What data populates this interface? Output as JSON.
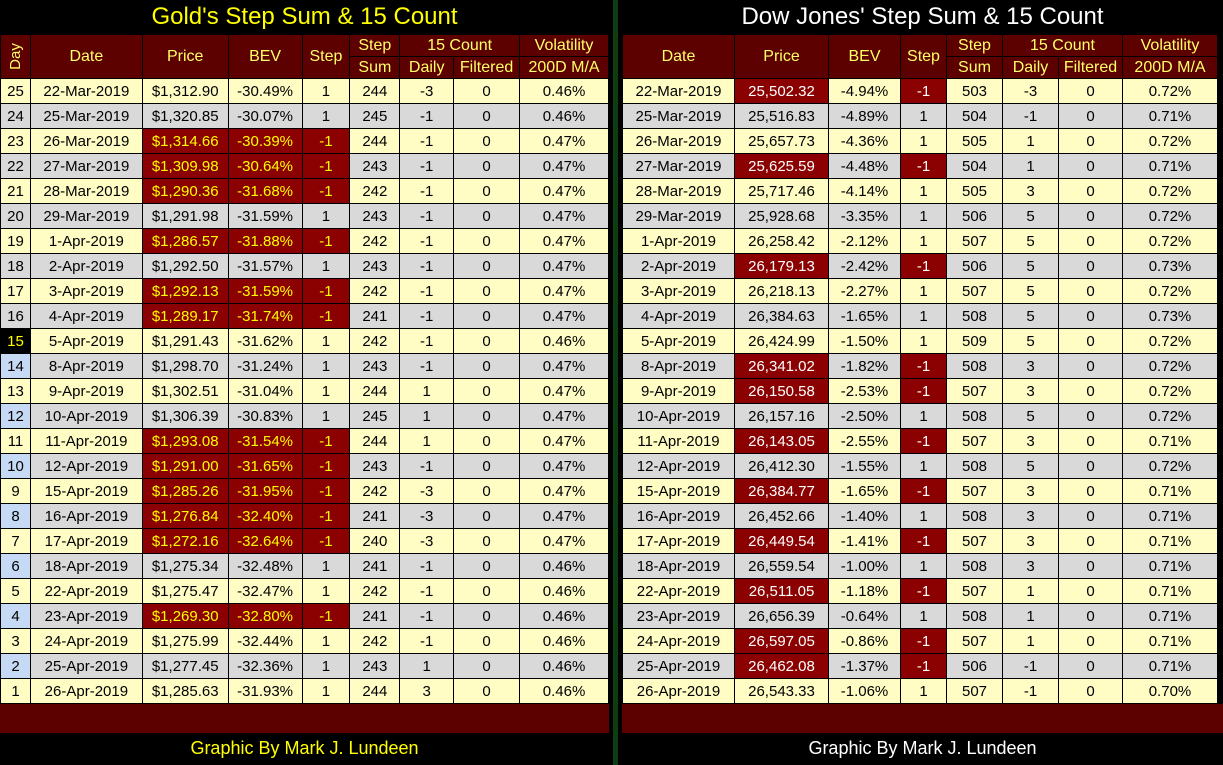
{
  "gold": {
    "title": "Gold's Step Sum & 15 Count",
    "credit": "Graphic By Mark J. Lundeen",
    "headers": {
      "day": "Day",
      "date": "Date",
      "price": "Price",
      "bev": "BEV",
      "step": "Step",
      "step_sum_1": "Step",
      "step_sum_2": "Sum",
      "count15": "15 Count",
      "daily": "Daily",
      "filtered": "Filtered",
      "vol_1": "Volatility",
      "vol_2": "200D M/A"
    },
    "rows": [
      {
        "day": "25",
        "date": "22-Mar-2019",
        "price": "$1,312.90",
        "bev": "-30.49%",
        "step": "1",
        "sum": "244",
        "daily": "-3",
        "filtered": "0",
        "vol": "0.46%",
        "neg": false
      },
      {
        "day": "24",
        "date": "25-Mar-2019",
        "price": "$1,320.85",
        "bev": "-30.07%",
        "step": "1",
        "sum": "245",
        "daily": "-1",
        "filtered": "0",
        "vol": "0.46%",
        "neg": false
      },
      {
        "day": "23",
        "date": "26-Mar-2019",
        "price": "$1,314.66",
        "bev": "-30.39%",
        "step": "-1",
        "sum": "244",
        "daily": "-1",
        "filtered": "0",
        "vol": "0.47%",
        "neg": true
      },
      {
        "day": "22",
        "date": "27-Mar-2019",
        "price": "$1,309.98",
        "bev": "-30.64%",
        "step": "-1",
        "sum": "243",
        "daily": "-1",
        "filtered": "0",
        "vol": "0.47%",
        "neg": true
      },
      {
        "day": "21",
        "date": "28-Mar-2019",
        "price": "$1,290.36",
        "bev": "-31.68%",
        "step": "-1",
        "sum": "242",
        "daily": "-1",
        "filtered": "0",
        "vol": "0.47%",
        "neg": true
      },
      {
        "day": "20",
        "date": "29-Mar-2019",
        "price": "$1,291.98",
        "bev": "-31.59%",
        "step": "1",
        "sum": "243",
        "daily": "-1",
        "filtered": "0",
        "vol": "0.47%",
        "neg": false
      },
      {
        "day": "19",
        "date": "1-Apr-2019",
        "price": "$1,286.57",
        "bev": "-31.88%",
        "step": "-1",
        "sum": "242",
        "daily": "-1",
        "filtered": "0",
        "vol": "0.47%",
        "neg": true
      },
      {
        "day": "18",
        "date": "2-Apr-2019",
        "price": "$1,292.50",
        "bev": "-31.57%",
        "step": "1",
        "sum": "243",
        "daily": "-1",
        "filtered": "0",
        "vol": "0.47%",
        "neg": false
      },
      {
        "day": "17",
        "date": "3-Apr-2019",
        "price": "$1,292.13",
        "bev": "-31.59%",
        "step": "-1",
        "sum": "242",
        "daily": "-1",
        "filtered": "0",
        "vol": "0.47%",
        "neg": true
      },
      {
        "day": "16",
        "date": "4-Apr-2019",
        "price": "$1,289.17",
        "bev": "-31.74%",
        "step": "-1",
        "sum": "241",
        "daily": "-1",
        "filtered": "0",
        "vol": "0.47%",
        "neg": true
      },
      {
        "day": "15",
        "date": "5-Apr-2019",
        "price": "$1,291.43",
        "bev": "-31.62%",
        "step": "1",
        "sum": "242",
        "daily": "-1",
        "filtered": "0",
        "vol": "0.46%",
        "neg": false
      },
      {
        "day": "14",
        "date": "8-Apr-2019",
        "price": "$1,298.70",
        "bev": "-31.24%",
        "step": "1",
        "sum": "243",
        "daily": "-1",
        "filtered": "0",
        "vol": "0.47%",
        "neg": false
      },
      {
        "day": "13",
        "date": "9-Apr-2019",
        "price": "$1,302.51",
        "bev": "-31.04%",
        "step": "1",
        "sum": "244",
        "daily": "1",
        "filtered": "0",
        "vol": "0.47%",
        "neg": false
      },
      {
        "day": "12",
        "date": "10-Apr-2019",
        "price": "$1,306.39",
        "bev": "-30.83%",
        "step": "1",
        "sum": "245",
        "daily": "1",
        "filtered": "0",
        "vol": "0.47%",
        "neg": false
      },
      {
        "day": "11",
        "date": "11-Apr-2019",
        "price": "$1,293.08",
        "bev": "-31.54%",
        "step": "-1",
        "sum": "244",
        "daily": "1",
        "filtered": "0",
        "vol": "0.47%",
        "neg": true
      },
      {
        "day": "10",
        "date": "12-Apr-2019",
        "price": "$1,291.00",
        "bev": "-31.65%",
        "step": "-1",
        "sum": "243",
        "daily": "-1",
        "filtered": "0",
        "vol": "0.47%",
        "neg": true
      },
      {
        "day": "9",
        "date": "15-Apr-2019",
        "price": "$1,285.26",
        "bev": "-31.95%",
        "step": "-1",
        "sum": "242",
        "daily": "-3",
        "filtered": "0",
        "vol": "0.47%",
        "neg": true
      },
      {
        "day": "8",
        "date": "16-Apr-2019",
        "price": "$1,276.84",
        "bev": "-32.40%",
        "step": "-1",
        "sum": "241",
        "daily": "-3",
        "filtered": "0",
        "vol": "0.47%",
        "neg": true
      },
      {
        "day": "7",
        "date": "17-Apr-2019",
        "price": "$1,272.16",
        "bev": "-32.64%",
        "step": "-1",
        "sum": "240",
        "daily": "-3",
        "filtered": "0",
        "vol": "0.47%",
        "neg": true
      },
      {
        "day": "6",
        "date": "18-Apr-2019",
        "price": "$1,275.34",
        "bev": "-32.48%",
        "step": "1",
        "sum": "241",
        "daily": "-1",
        "filtered": "0",
        "vol": "0.46%",
        "neg": false
      },
      {
        "day": "5",
        "date": "22-Apr-2019",
        "price": "$1,275.47",
        "bev": "-32.47%",
        "step": "1",
        "sum": "242",
        "daily": "-1",
        "filtered": "0",
        "vol": "0.46%",
        "neg": false
      },
      {
        "day": "4",
        "date": "23-Apr-2019",
        "price": "$1,269.30",
        "bev": "-32.80%",
        "step": "-1",
        "sum": "241",
        "daily": "-1",
        "filtered": "0",
        "vol": "0.46%",
        "neg": true
      },
      {
        "day": "3",
        "date": "24-Apr-2019",
        "price": "$1,275.99",
        "bev": "-32.44%",
        "step": "1",
        "sum": "242",
        "daily": "-1",
        "filtered": "0",
        "vol": "0.46%",
        "neg": false
      },
      {
        "day": "2",
        "date": "25-Apr-2019",
        "price": "$1,277.45",
        "bev": "-32.36%",
        "step": "1",
        "sum": "243",
        "daily": "1",
        "filtered": "0",
        "vol": "0.46%",
        "neg": false
      },
      {
        "day": "1",
        "date": "26-Apr-2019",
        "price": "$1,285.63",
        "bev": "-31.93%",
        "step": "1",
        "sum": "244",
        "daily": "3",
        "filtered": "0",
        "vol": "0.46%",
        "neg": false
      }
    ]
  },
  "dow": {
    "title": "Dow Jones' Step Sum & 15 Count",
    "credit": "Graphic By Mark J. Lundeen",
    "headers": {
      "date": "Date",
      "price": "Price",
      "bev": "BEV",
      "step": "Step",
      "step_sum_1": "Step",
      "step_sum_2": "Sum",
      "count15": "15 Count",
      "daily": "Daily",
      "filtered": "Filtered",
      "vol_1": "Volatility",
      "vol_2": "200D M/A"
    },
    "rows": [
      {
        "date": "22-Mar-2019",
        "price": "25,502.32",
        "bev": "-4.94%",
        "step": "-1",
        "sum": "503",
        "daily": "-3",
        "filtered": "0",
        "vol": "0.72%",
        "neg": true
      },
      {
        "date": "25-Mar-2019",
        "price": "25,516.83",
        "bev": "-4.89%",
        "step": "1",
        "sum": "504",
        "daily": "-1",
        "filtered": "0",
        "vol": "0.71%",
        "neg": false
      },
      {
        "date": "26-Mar-2019",
        "price": "25,657.73",
        "bev": "-4.36%",
        "step": "1",
        "sum": "505",
        "daily": "1",
        "filtered": "0",
        "vol": "0.72%",
        "neg": false
      },
      {
        "date": "27-Mar-2019",
        "price": "25,625.59",
        "bev": "-4.48%",
        "step": "-1",
        "sum": "504",
        "daily": "1",
        "filtered": "0",
        "vol": "0.71%",
        "neg": true
      },
      {
        "date": "28-Mar-2019",
        "price": "25,717.46",
        "bev": "-4.14%",
        "step": "1",
        "sum": "505",
        "daily": "3",
        "filtered": "0",
        "vol": "0.72%",
        "neg": false
      },
      {
        "date": "29-Mar-2019",
        "price": "25,928.68",
        "bev": "-3.35%",
        "step": "1",
        "sum": "506",
        "daily": "5",
        "filtered": "0",
        "vol": "0.72%",
        "neg": false
      },
      {
        "date": "1-Apr-2019",
        "price": "26,258.42",
        "bev": "-2.12%",
        "step": "1",
        "sum": "507",
        "daily": "5",
        "filtered": "0",
        "vol": "0.72%",
        "neg": false
      },
      {
        "date": "2-Apr-2019",
        "price": "26,179.13",
        "bev": "-2.42%",
        "step": "-1",
        "sum": "506",
        "daily": "5",
        "filtered": "0",
        "vol": "0.73%",
        "neg": true
      },
      {
        "date": "3-Apr-2019",
        "price": "26,218.13",
        "bev": "-2.27%",
        "step": "1",
        "sum": "507",
        "daily": "5",
        "filtered": "0",
        "vol": "0.72%",
        "neg": false
      },
      {
        "date": "4-Apr-2019",
        "price": "26,384.63",
        "bev": "-1.65%",
        "step": "1",
        "sum": "508",
        "daily": "5",
        "filtered": "0",
        "vol": "0.73%",
        "neg": false
      },
      {
        "date": "5-Apr-2019",
        "price": "26,424.99",
        "bev": "-1.50%",
        "step": "1",
        "sum": "509",
        "daily": "5",
        "filtered": "0",
        "vol": "0.72%",
        "neg": false
      },
      {
        "date": "8-Apr-2019",
        "price": "26,341.02",
        "bev": "-1.82%",
        "step": "-1",
        "sum": "508",
        "daily": "3",
        "filtered": "0",
        "vol": "0.72%",
        "neg": true
      },
      {
        "date": "9-Apr-2019",
        "price": "26,150.58",
        "bev": "-2.53%",
        "step": "-1",
        "sum": "507",
        "daily": "3",
        "filtered": "0",
        "vol": "0.72%",
        "neg": true
      },
      {
        "date": "10-Apr-2019",
        "price": "26,157.16",
        "bev": "-2.50%",
        "step": "1",
        "sum": "508",
        "daily": "5",
        "filtered": "0",
        "vol": "0.72%",
        "neg": false
      },
      {
        "date": "11-Apr-2019",
        "price": "26,143.05",
        "bev": "-2.55%",
        "step": "-1",
        "sum": "507",
        "daily": "3",
        "filtered": "0",
        "vol": "0.71%",
        "neg": true
      },
      {
        "date": "12-Apr-2019",
        "price": "26,412.30",
        "bev": "-1.55%",
        "step": "1",
        "sum": "508",
        "daily": "5",
        "filtered": "0",
        "vol": "0.72%",
        "neg": false
      },
      {
        "date": "15-Apr-2019",
        "price": "26,384.77",
        "bev": "-1.65%",
        "step": "-1",
        "sum": "507",
        "daily": "3",
        "filtered": "0",
        "vol": "0.71%",
        "neg": true
      },
      {
        "date": "16-Apr-2019",
        "price": "26,452.66",
        "bev": "-1.40%",
        "step": "1",
        "sum": "508",
        "daily": "3",
        "filtered": "0",
        "vol": "0.71%",
        "neg": false
      },
      {
        "date": "17-Apr-2019",
        "price": "26,449.54",
        "bev": "-1.41%",
        "step": "-1",
        "sum": "507",
        "daily": "3",
        "filtered": "0",
        "vol": "0.71%",
        "neg": true
      },
      {
        "date": "18-Apr-2019",
        "price": "26,559.54",
        "bev": "-1.00%",
        "step": "1",
        "sum": "508",
        "daily": "3",
        "filtered": "0",
        "vol": "0.71%",
        "neg": false
      },
      {
        "date": "22-Apr-2019",
        "price": "26,511.05",
        "bev": "-1.18%",
        "step": "-1",
        "sum": "507",
        "daily": "1",
        "filtered": "0",
        "vol": "0.71%",
        "neg": true
      },
      {
        "date": "23-Apr-2019",
        "price": "26,656.39",
        "bev": "-0.64%",
        "step": "1",
        "sum": "508",
        "daily": "1",
        "filtered": "0",
        "vol": "0.71%",
        "neg": false
      },
      {
        "date": "24-Apr-2019",
        "price": "26,597.05",
        "bev": "-0.86%",
        "step": "-1",
        "sum": "507",
        "daily": "1",
        "filtered": "0",
        "vol": "0.71%",
        "neg": true
      },
      {
        "date": "25-Apr-2019",
        "price": "26,462.08",
        "bev": "-1.37%",
        "step": "-1",
        "sum": "506",
        "daily": "-1",
        "filtered": "0",
        "vol": "0.71%",
        "neg": true
      },
      {
        "date": "26-Apr-2019",
        "price": "26,543.33",
        "bev": "-1.06%",
        "step": "1",
        "sum": "507",
        "daily": "-1",
        "filtered": "0",
        "vol": "0.70%",
        "neg": false
      }
    ]
  },
  "colors": {
    "header_bg": "#5c0000",
    "header_text": "#ffff66",
    "negative_cell": "#8b0000",
    "row_light": "#fffdc4",
    "row_gray": "#d9d9d9",
    "day_blue": "#c7daf5"
  }
}
